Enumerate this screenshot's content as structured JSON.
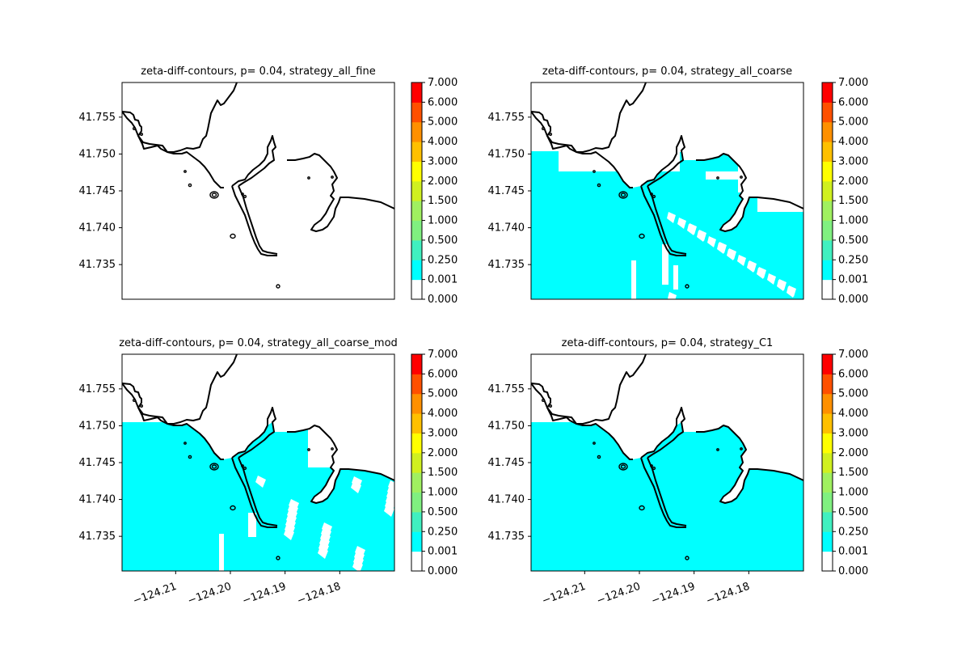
{
  "chart_data": [
    {
      "type": "heatmap",
      "title": "zeta-diff-contours, p= 0.04, strategy_all_fine",
      "xlabel": "",
      "ylabel": "",
      "xlim": [
        -124.2198,
        -124.17
      ],
      "ylim": [
        41.7303,
        41.7597
      ],
      "ytick_values": [
        41.735,
        41.74,
        41.745,
        41.75,
        41.755
      ],
      "ytick_labels": [
        "41.735",
        "41.740",
        "41.745",
        "41.750",
        "41.755"
      ],
      "xtick_values": [],
      "xtick_labels": [],
      "fill": "none",
      "colorbar": {
        "levels": [
          0.0,
          0.001,
          0.25,
          0.5,
          1.0,
          1.5,
          2.0,
          3.0,
          4.0,
          5.0,
          6.0,
          7.0
        ],
        "tick_labels": [
          "0.000",
          "0.001",
          "0.250",
          "0.500",
          "1.000",
          "1.500",
          "2.000",
          "3.000",
          "4.000",
          "5.000",
          "6.000",
          "7.000"
        ]
      }
    },
    {
      "type": "heatmap",
      "title": "zeta-diff-contours, p= 0.04, strategy_all_coarse",
      "xlabel": "",
      "ylabel": "",
      "xlim": [
        -124.2198,
        -124.17
      ],
      "ylim": [
        41.7303,
        41.7597
      ],
      "ytick_values": [
        41.735,
        41.74,
        41.745,
        41.75,
        41.755
      ],
      "ytick_labels": [
        "41.735",
        "41.740",
        "41.745",
        "41.750",
        "41.755"
      ],
      "xtick_values": [],
      "xtick_labels": [],
      "fill": "offshore_with_blocky_gaps",
      "fill_value_range": [
        0.001,
        0.25
      ],
      "colorbar": {
        "levels": [
          0.0,
          0.001,
          0.25,
          0.5,
          1.0,
          1.5,
          2.0,
          3.0,
          4.0,
          5.0,
          6.0,
          7.0
        ],
        "tick_labels": [
          "0.000",
          "0.001",
          "0.250",
          "0.500",
          "1.000",
          "1.500",
          "2.000",
          "3.000",
          "4.000",
          "5.000",
          "6.000",
          "7.000"
        ]
      }
    },
    {
      "type": "heatmap",
      "title": "zeta-diff-contours, p= 0.04, strategy_all_coarse_mod",
      "xlabel": "",
      "ylabel": "",
      "xlim": [
        -124.2198,
        -124.17
      ],
      "ylim": [
        41.7303,
        41.7597
      ],
      "ytick_values": [
        41.735,
        41.74,
        41.745,
        41.75,
        41.755
      ],
      "ytick_labels": [
        "41.735",
        "41.740",
        "41.745",
        "41.750",
        "41.755"
      ],
      "xtick_values": [
        -124.21,
        -124.2,
        -124.19,
        -124.18
      ],
      "xtick_labels": [
        "−124.21",
        "−124.20",
        "−124.19",
        "−124.18"
      ],
      "fill": "offshore_with_gaps_east",
      "fill_value_range": [
        0.001,
        0.25
      ],
      "colorbar": {
        "levels": [
          0.0,
          0.001,
          0.25,
          0.5,
          1.0,
          1.5,
          2.0,
          3.0,
          4.0,
          5.0,
          6.0,
          7.0
        ],
        "tick_labels": [
          "0.000",
          "0.001",
          "0.250",
          "0.500",
          "1.000",
          "1.500",
          "2.000",
          "3.000",
          "4.000",
          "5.000",
          "6.000",
          "7.000"
        ]
      }
    },
    {
      "type": "heatmap",
      "title": "zeta-diff-contours, p= 0.04, strategy_C1",
      "xlabel": "",
      "ylabel": "",
      "xlim": [
        -124.2198,
        -124.17
      ],
      "ylim": [
        41.7303,
        41.7597
      ],
      "ytick_values": [
        41.735,
        41.74,
        41.745,
        41.75,
        41.755
      ],
      "ytick_labels": [
        "41.735",
        "41.740",
        "41.745",
        "41.750",
        "41.755"
      ],
      "xtick_values": [
        -124.21,
        -124.2,
        -124.19,
        -124.18
      ],
      "xtick_labels": [
        "−124.21",
        "−124.20",
        "−124.19",
        "−124.18"
      ],
      "fill": "offshore_full",
      "fill_value_range": [
        0.001,
        0.25
      ],
      "colorbar": {
        "levels": [
          0.0,
          0.001,
          0.25,
          0.5,
          1.0,
          1.5,
          2.0,
          3.0,
          4.0,
          5.0,
          6.0,
          7.0
        ],
        "tick_labels": [
          "0.000",
          "0.001",
          "0.250",
          "0.500",
          "1.000",
          "1.500",
          "2.000",
          "3.000",
          "4.000",
          "5.000",
          "6.000",
          "7.000"
        ]
      }
    }
  ],
  "colors": {
    "band_colors": [
      "#ffffff",
      "#00ffff",
      "#40f0c0",
      "#80f080",
      "#a0f060",
      "#d0f020",
      "#ffff00",
      "#ffc000",
      "#ff9000",
      "#ff5000",
      "#ff0000"
    ],
    "fill": "#00ffff",
    "coastline": "#000000",
    "gap": "#ffffff"
  }
}
